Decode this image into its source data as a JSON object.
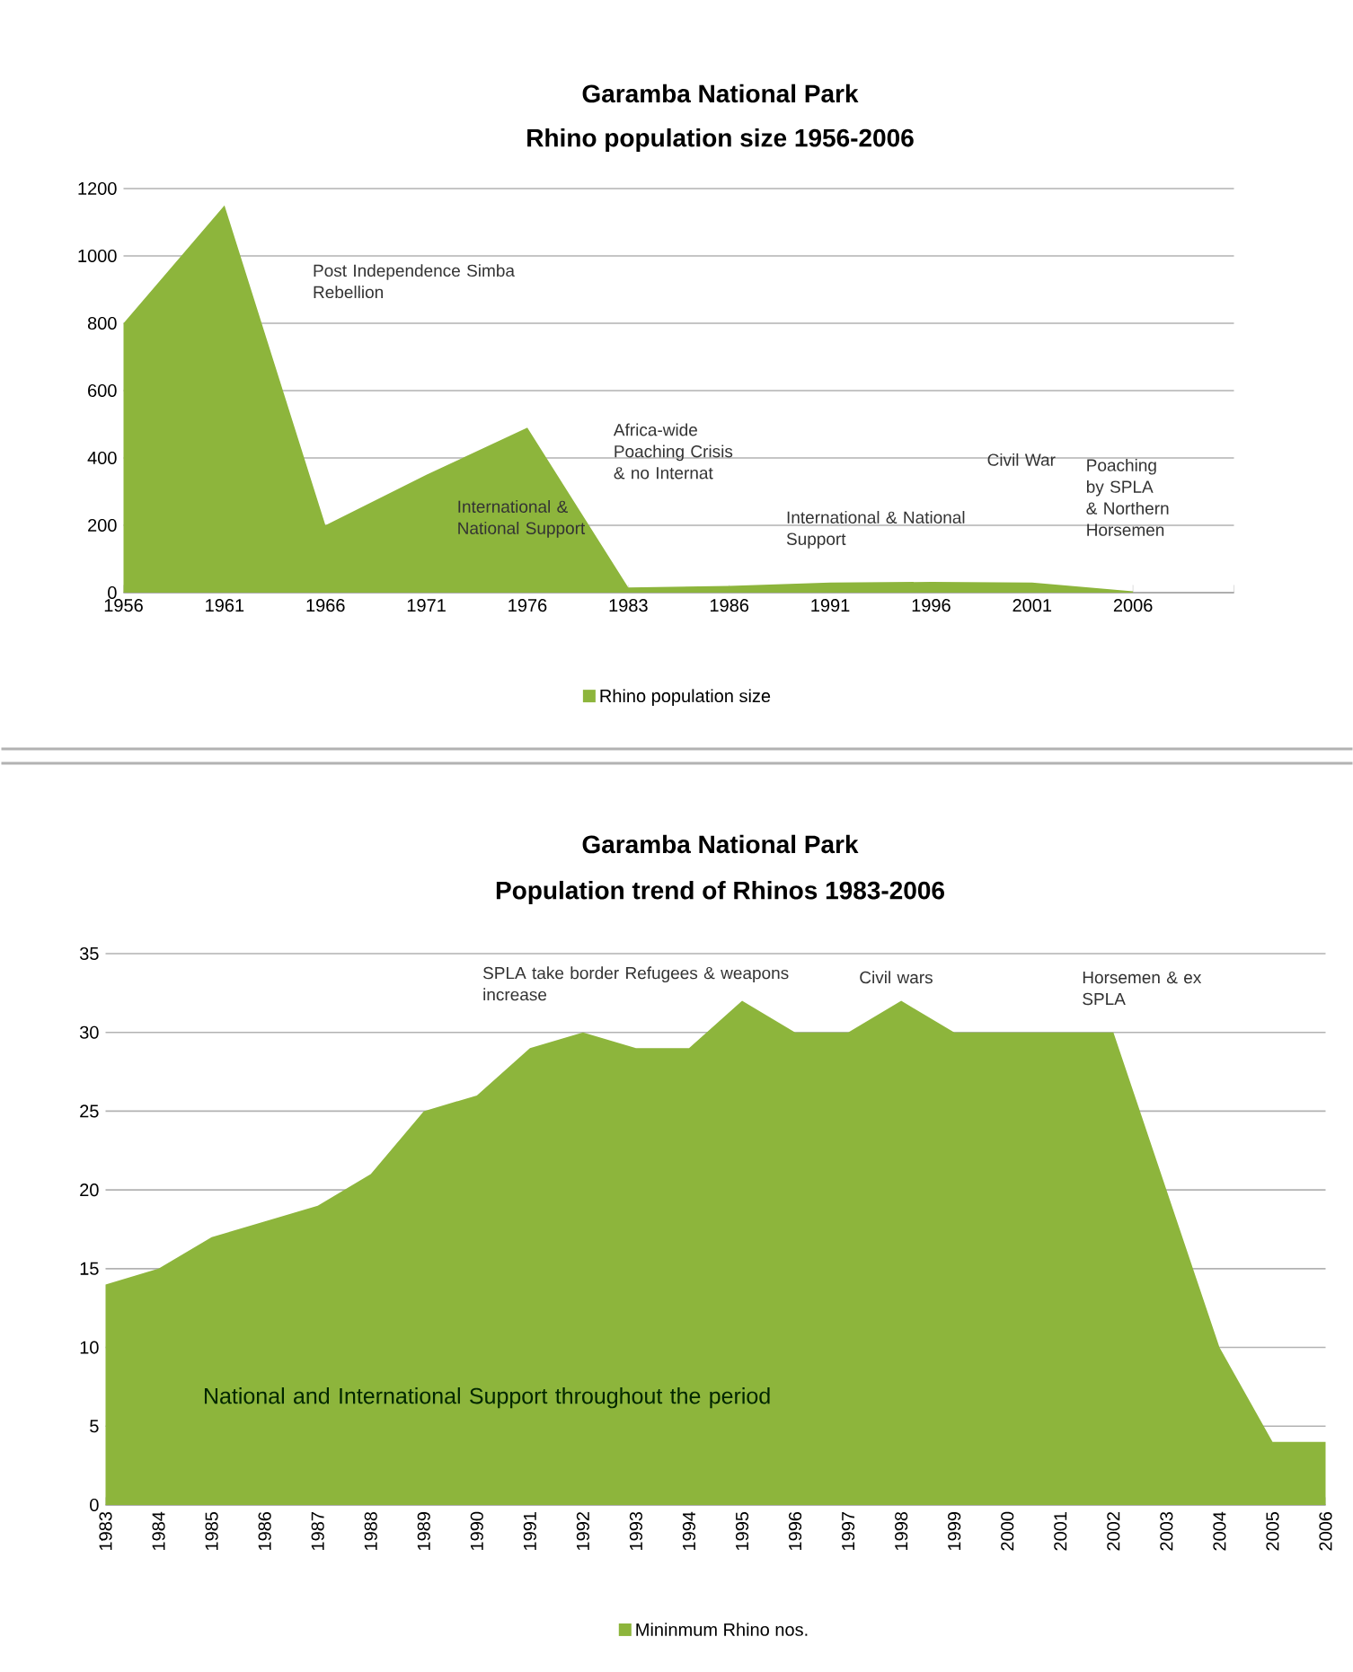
{
  "chart_data": [
    {
      "type": "area",
      "title": "Garamba National Park",
      "subtitle": "Rhino population size 1956-2006",
      "categories": [
        "1956",
        "1961",
        "1966",
        "1971",
        "1976",
        "1983",
        "1986",
        "1991",
        "1996",
        "2001",
        "2006",
        null
      ],
      "series": [
        {
          "name": "Rhino population size",
          "color": "#8db53c",
          "values": [
            800,
            1150,
            200,
            350,
            490,
            15,
            20,
            30,
            32,
            30,
            4,
            null
          ]
        }
      ],
      "ylim": [
        0,
        1200
      ],
      "yticks": [
        0,
        200,
        400,
        600,
        800,
        1000,
        1200
      ],
      "grid": "y",
      "legend": "bottom",
      "annotations": [
        "Post Independence Simba Rebellion",
        "International & National Support",
        "Africa-wide Poaching Crisis & no Internat",
        "International & National Support",
        "Civil War",
        "Poaching by SPLA & Northern Horsemen"
      ]
    },
    {
      "type": "area",
      "title": "Garamba National Park",
      "subtitle": "Population trend of Rhinos 1983-2006",
      "categories": [
        "1983",
        "1984",
        "1985",
        "1986",
        "1987",
        "1988",
        "1989",
        "1990",
        "1991",
        "1992",
        "1993",
        "1994",
        "1995",
        "1996",
        "1997",
        "1998",
        "1999",
        "2000",
        "2001",
        "2002",
        "2003",
        "2004",
        "2005",
        "2006"
      ],
      "series": [
        {
          "name": "Mininmum Rhino nos.",
          "color": "#8db53c",
          "values": [
            14,
            15,
            17,
            18,
            19,
            21,
            25,
            26,
            29,
            30,
            29,
            29,
            32,
            30,
            30,
            32,
            30,
            30,
            30,
            30,
            20,
            10,
            4,
            4
          ]
        }
      ],
      "ylim": [
        0,
        35
      ],
      "yticks": [
        0,
        5,
        10,
        15,
        20,
        25,
        30,
        35
      ],
      "grid": "y",
      "legend": "bottom",
      "annotations": [
        "SPLA  take border Refugees & weapons increase",
        "Civil wars",
        "Horsemen & ex SPLA",
        "National and International Support throughout  the period"
      ]
    }
  ]
}
